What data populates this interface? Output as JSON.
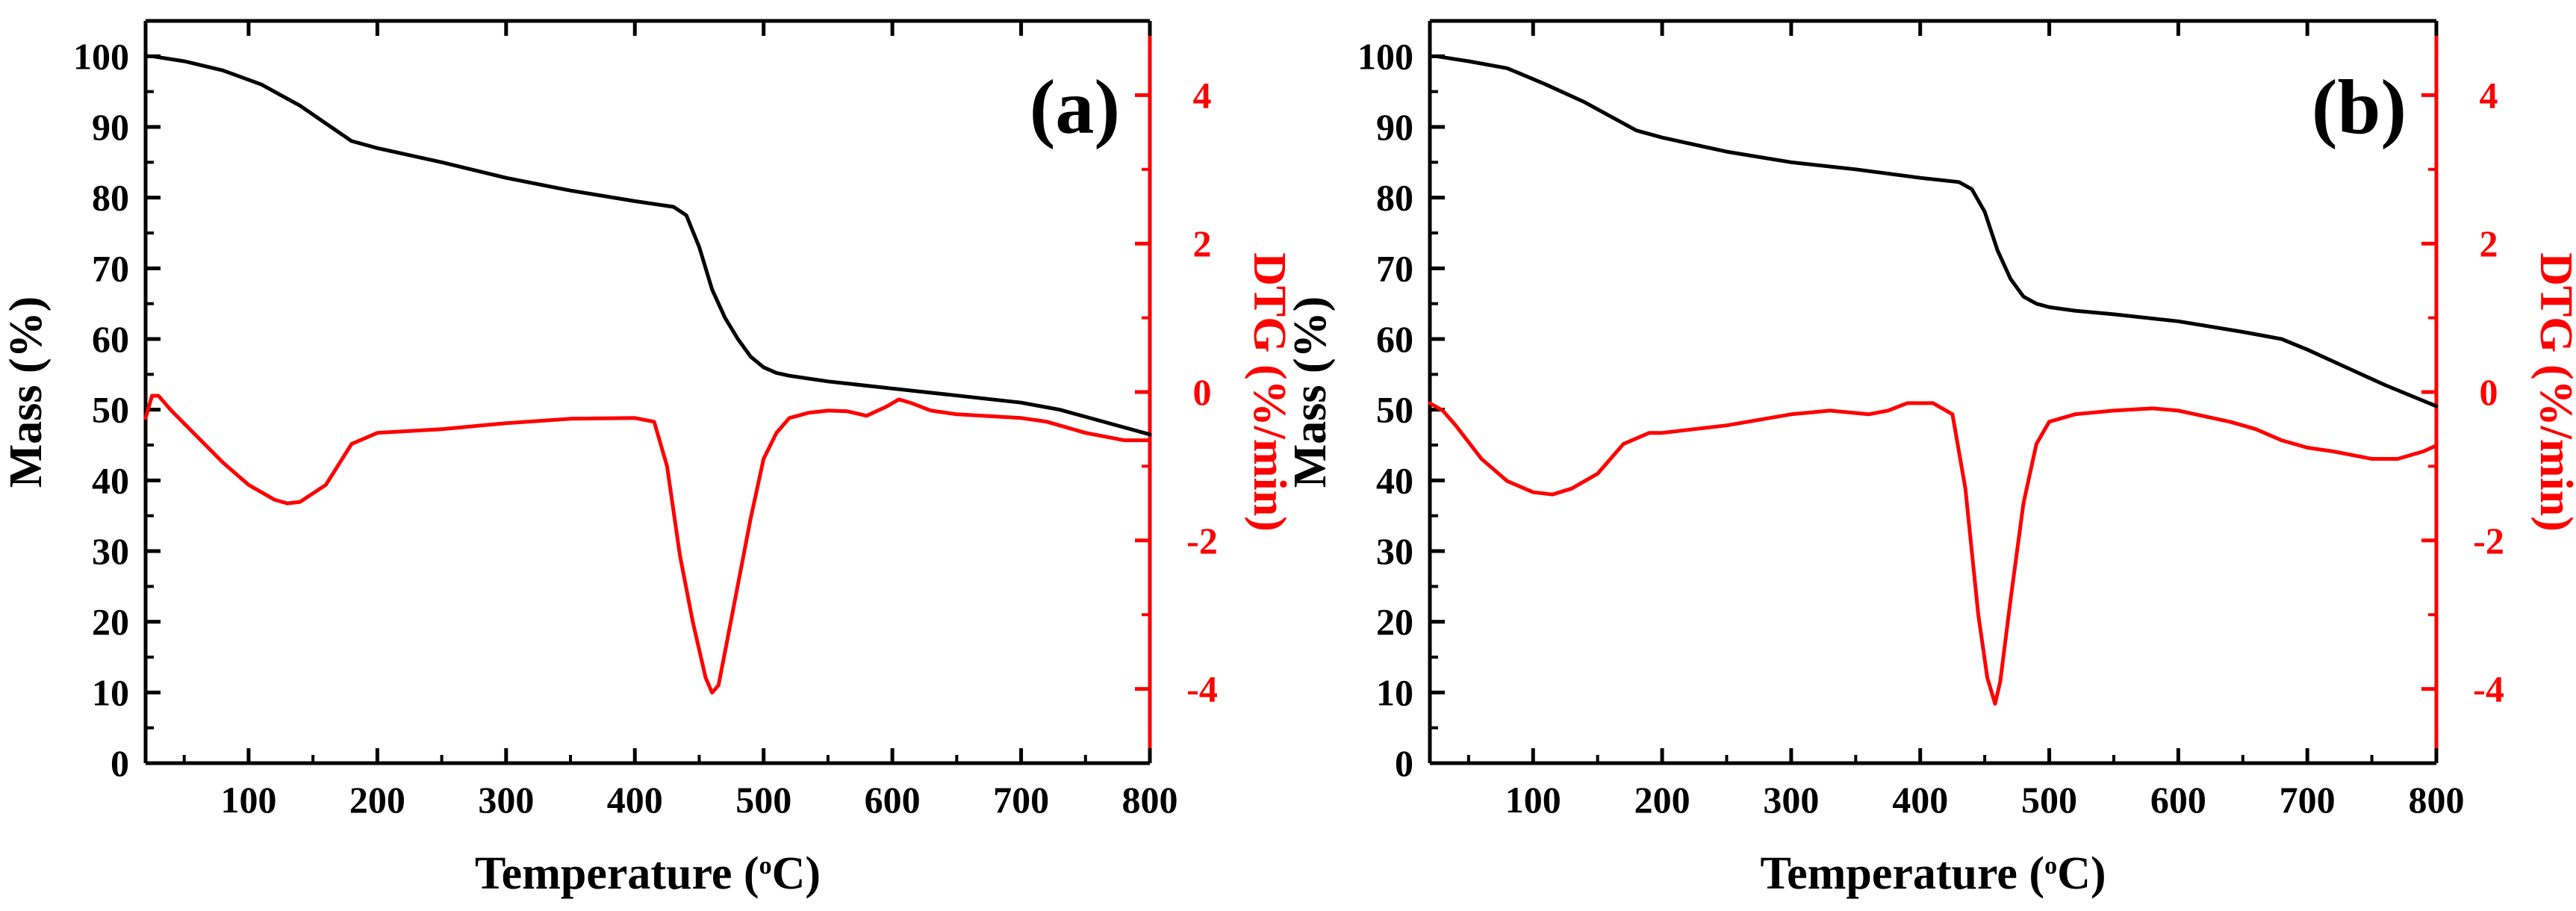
{
  "chart_data": [
    {
      "type": "line",
      "panel_label": "(a)",
      "xlabel_main": "Temperature (",
      "xlabel_sup": "o",
      "xlabel_unit": "C)",
      "ylabel_left": "Mass (%)",
      "ylabel_right": "DTG (%/min)",
      "xlim": [
        20,
        800
      ],
      "ylim_left": [
        0,
        105
      ],
      "ylim_right": [
        -5,
        5
      ],
      "x_ticks": [
        100,
        200,
        300,
        400,
        500,
        600,
        700,
        800
      ],
      "y_left_ticks": [
        0,
        10,
        20,
        30,
        40,
        50,
        60,
        70,
        80,
        90,
        100
      ],
      "y_right_ticks": [
        -4,
        -2,
        0,
        2,
        4
      ],
      "colors": {
        "mass": "#000000",
        "dtg": "#ff0000",
        "axis_right": "#ff0000"
      },
      "series": [
        {
          "name": "Mass",
          "axis": "left",
          "x": [
            25,
            50,
            80,
            110,
            140,
            160,
            180,
            200,
            250,
            300,
            350,
            400,
            430,
            440,
            450,
            460,
            470,
            480,
            490,
            500,
            510,
            520,
            550,
            600,
            650,
            700,
            730,
            750,
            770,
            800
          ],
          "values": [
            100,
            99.3,
            98,
            96,
            93,
            90.5,
            88,
            87,
            85,
            82.8,
            81,
            79.5,
            78.7,
            77.5,
            73,
            67,
            63,
            60,
            57.5,
            56,
            55.2,
            54.8,
            54,
            53,
            52,
            51,
            50,
            49,
            48,
            46.5
          ]
        },
        {
          "name": "DTG",
          "axis": "right",
          "x": [
            20,
            25,
            30,
            40,
            60,
            80,
            100,
            120,
            130,
            140,
            160,
            180,
            200,
            250,
            300,
            350,
            400,
            415,
            425,
            435,
            445,
            455,
            460,
            465,
            470,
            480,
            490,
            500,
            510,
            520,
            535,
            550,
            565,
            580,
            595,
            605,
            615,
            630,
            650,
            700,
            720,
            750,
            780,
            800
          ],
          "values": [
            -0.35,
            -0.05,
            -0.05,
            -0.25,
            -0.6,
            -0.95,
            -1.25,
            -1.45,
            -1.5,
            -1.48,
            -1.25,
            -0.7,
            -0.55,
            -0.5,
            -0.42,
            -0.36,
            -0.35,
            -0.4,
            -1.0,
            -2.2,
            -3.1,
            -3.85,
            -4.05,
            -3.95,
            -3.5,
            -2.6,
            -1.7,
            -0.9,
            -0.55,
            -0.35,
            -0.28,
            -0.25,
            -0.26,
            -0.32,
            -0.2,
            -0.1,
            -0.15,
            -0.25,
            -0.3,
            -0.35,
            -0.4,
            -0.55,
            -0.65,
            -0.65
          ]
        }
      ]
    },
    {
      "type": "line",
      "panel_label": "(b)",
      "xlabel_main": "Temperature (",
      "xlabel_sup": "o",
      "xlabel_unit": "C)",
      "ylabel_left": "Mass (%)",
      "ylabel_right": "DTG (%/min)",
      "xlim": [
        20,
        800
      ],
      "ylim_left": [
        0,
        105
      ],
      "ylim_right": [
        -5,
        5
      ],
      "x_ticks": [
        100,
        200,
        300,
        400,
        500,
        600,
        700,
        800
      ],
      "y_left_ticks": [
        0,
        10,
        20,
        30,
        40,
        50,
        60,
        70,
        80,
        90,
        100
      ],
      "y_right_ticks": [
        -4,
        -2,
        0,
        2,
        4
      ],
      "colors": {
        "mass": "#000000",
        "dtg": "#ff0000",
        "axis_right": "#ff0000"
      },
      "series": [
        {
          "name": "Mass",
          "axis": "left",
          "x": [
            25,
            50,
            80,
            110,
            140,
            160,
            180,
            200,
            250,
            300,
            350,
            400,
            430,
            440,
            450,
            460,
            470,
            480,
            490,
            500,
            520,
            550,
            600,
            650,
            680,
            700,
            730,
            760,
            800
          ],
          "values": [
            100,
            99.3,
            98.3,
            96,
            93.5,
            91.5,
            89.5,
            88.5,
            86.5,
            85,
            84,
            82.8,
            82.2,
            81.2,
            78,
            72.5,
            68.5,
            66,
            65,
            64.5,
            64,
            63.5,
            62.5,
            61,
            60,
            58.5,
            56,
            53.5,
            50.5
          ]
        },
        {
          "name": "DTG",
          "axis": "right",
          "x": [
            20,
            25,
            30,
            40,
            60,
            80,
            100,
            115,
            130,
            150,
            170,
            190,
            200,
            250,
            300,
            330,
            360,
            375,
            390,
            410,
            425,
            435,
            445,
            452,
            458,
            462,
            470,
            480,
            490,
            500,
            520,
            550,
            580,
            600,
            640,
            660,
            680,
            700,
            720,
            750,
            770,
            790,
            800
          ],
          "values": [
            -0.15,
            -0.2,
            -0.25,
            -0.45,
            -0.9,
            -1.2,
            -1.35,
            -1.38,
            -1.3,
            -1.1,
            -0.7,
            -0.55,
            -0.55,
            -0.45,
            -0.3,
            -0.25,
            -0.3,
            -0.25,
            -0.15,
            -0.15,
            -0.3,
            -1.3,
            -3.0,
            -3.85,
            -4.2,
            -3.9,
            -2.8,
            -1.5,
            -0.7,
            -0.4,
            -0.3,
            -0.25,
            -0.22,
            -0.25,
            -0.4,
            -0.5,
            -0.65,
            -0.75,
            -0.8,
            -0.9,
            -0.9,
            -0.8,
            -0.72
          ]
        }
      ]
    }
  ]
}
